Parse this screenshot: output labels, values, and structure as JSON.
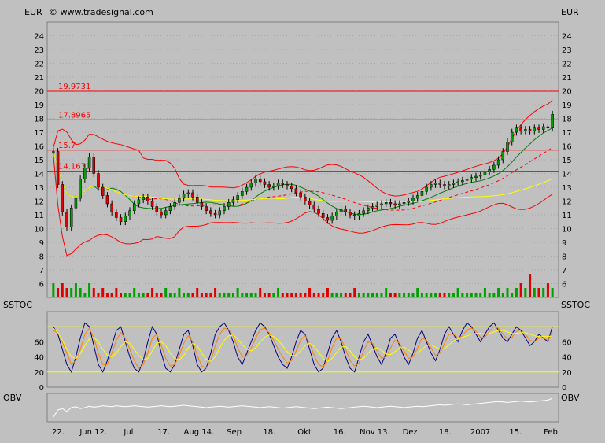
{
  "header": {
    "left_unit": "EUR",
    "right_unit": "EUR",
    "copyright": "© www.tradesignal.com"
  },
  "colors": {
    "background": "#c0c0c0",
    "panel": "#c0c0c0",
    "up_candle": "#00a000",
    "down_candle": "#e00000",
    "bollinger": "#ff0000",
    "ma_fast": "#ff0000",
    "ma_mid": "#008000",
    "ma_slow": "#ffff00",
    "level_line": "#ff0000",
    "stoch_k": "#000080",
    "stoch_d": "#ff8000",
    "stoch_slow": "#ffff00",
    "obv": "#ffffff",
    "grid": "#8c8c8c"
  },
  "chart_data": [
    {
      "type": "candlestick",
      "panel": "price",
      "ylim": [
        5,
        25
      ],
      "y_ticks": [
        6,
        7,
        8,
        9,
        10,
        11,
        12,
        13,
        14,
        15,
        16,
        17,
        18,
        19,
        20,
        21,
        22,
        23,
        24
      ],
      "x_labels": [
        "22.",
        "Jun 12.",
        "Jul",
        "17.",
        "Aug 14.",
        "Sep",
        "18.",
        "Okt",
        "16.",
        "Nov 13.",
        "Dez",
        "18.",
        "2007",
        "15.",
        "Feb"
      ],
      "levels": [
        {
          "label": "19.9731",
          "value": 19.9731
        },
        {
          "label": "17.8965",
          "value": 17.8965
        },
        {
          "label": "15.7",
          "value": 15.7
        },
        {
          "label": "14.1671",
          "value": 14.1671
        }
      ],
      "close": [
        15.6,
        13.2,
        11.2,
        10.1,
        11.5,
        12.2,
        13.6,
        14.4,
        15.2,
        14.0,
        13.0,
        12.4,
        11.8,
        11.2,
        10.8,
        10.5,
        10.9,
        11.3,
        11.8,
        12.1,
        12.3,
        12.0,
        11.6,
        11.2,
        11.0,
        11.3,
        11.6,
        11.9,
        12.2,
        12.5,
        12.6,
        12.3,
        11.9,
        11.6,
        11.3,
        11.1,
        11.0,
        11.3,
        11.6,
        11.9,
        12.1,
        12.4,
        12.7,
        13.0,
        13.3,
        13.6,
        13.4,
        13.2,
        13.0,
        13.1,
        13.3,
        13.2,
        13.1,
        12.9,
        12.6,
        12.3,
        12.0,
        11.7,
        11.4,
        11.1,
        10.8,
        10.6,
        10.9,
        11.2,
        11.4,
        11.2,
        11.0,
        10.9,
        11.1,
        11.3,
        11.5,
        11.6,
        11.7,
        11.8,
        11.9,
        11.8,
        11.7,
        11.8,
        11.9,
        12.0,
        12.2,
        12.4,
        12.7,
        13.0,
        13.2,
        13.3,
        13.2,
        13.1,
        13.2,
        13.3,
        13.4,
        13.5,
        13.6,
        13.7,
        13.8,
        13.9,
        14.1,
        14.3,
        14.6,
        15.0,
        15.6,
        16.3,
        17.0,
        17.3,
        17.1,
        17.2,
        17.1,
        17.3,
        17.2,
        17.4,
        17.3,
        18.3
      ],
      "volume": [
        3,
        2,
        3,
        2,
        2,
        3,
        2,
        1,
        3,
        2,
        1,
        2,
        1,
        1,
        2,
        1,
        1,
        1,
        2,
        1,
        1,
        1,
        2,
        1,
        1,
        2,
        1,
        1,
        2,
        1,
        1,
        1,
        2,
        1,
        1,
        1,
        2,
        1,
        1,
        1,
        1,
        2,
        1,
        1,
        1,
        1,
        2,
        1,
        1,
        1,
        2,
        1,
        1,
        1,
        1,
        1,
        1,
        2,
        1,
        1,
        1,
        2,
        1,
        1,
        1,
        1,
        1,
        2,
        1,
        1,
        1,
        1,
        1,
        1,
        2,
        1,
        1,
        1,
        1,
        1,
        1,
        2,
        1,
        1,
        1,
        1,
        1,
        1,
        1,
        1,
        2,
        1,
        1,
        1,
        1,
        1,
        2,
        1,
        1,
        2,
        1,
        2,
        1,
        2,
        3,
        2,
        5,
        2,
        2,
        2,
        3,
        2
      ]
    },
    {
      "type": "line",
      "panel": "SSTOC",
      "label": "SSTOC",
      "ylim": [
        0,
        100
      ],
      "y_ticks": [
        0,
        20,
        40,
        60
      ],
      "bands": [
        20,
        80
      ],
      "series": [
        {
          "values": [
            80,
            70,
            50,
            30,
            20,
            40,
            65,
            85,
            80,
            55,
            30,
            20,
            35,
            55,
            75,
            80,
            60,
            40,
            25,
            20,
            35,
            60,
            80,
            70,
            45,
            25,
            20,
            30,
            50,
            70,
            75,
            55,
            30,
            20,
            25,
            45,
            70,
            80,
            85,
            75,
            60,
            40,
            30,
            45,
            60,
            75,
            85,
            80,
            70,
            55,
            40,
            30,
            25,
            40,
            60,
            75,
            70,
            50,
            30,
            20,
            25,
            45,
            65,
            75,
            60,
            40,
            25,
            20,
            40,
            60,
            70,
            55,
            40,
            30,
            45,
            65,
            70,
            55,
            40,
            30,
            45,
            65,
            75,
            60,
            45,
            35,
            50,
            70,
            80,
            70,
            60,
            75,
            85,
            80,
            70,
            60,
            70,
            80,
            85,
            75,
            65,
            60,
            70,
            80,
            75,
            65,
            55,
            60,
            70,
            65,
            60,
            80
          ]
        },
        {
          "values": [
            75,
            72,
            60,
            45,
            30,
            35,
            50,
            70,
            78,
            65,
            45,
            30,
            30,
            45,
            62,
            72,
            65,
            50,
            35,
            25,
            30,
            45,
            65,
            70,
            55,
            38,
            28,
            30,
            42,
            58,
            68,
            60,
            42,
            28,
            25,
            35,
            55,
            70,
            78,
            76,
            68,
            52,
            40,
            42,
            52,
            65,
            76,
            78,
            72,
            62,
            50,
            40,
            32,
            35,
            48,
            62,
            68,
            58,
            42,
            30,
            27,
            35,
            52,
            65,
            64,
            50,
            35,
            28,
            32,
            48,
            60,
            58,
            48,
            38,
            40,
            52,
            62,
            58,
            48,
            38,
            40,
            52,
            65,
            62,
            52,
            42,
            45,
            58,
            70,
            70,
            65,
            68,
            76,
            78,
            74,
            66,
            66,
            74,
            80,
            78,
            70,
            64,
            66,
            74,
            76,
            70,
            62,
            60,
            65,
            65,
            62,
            72
          ]
        },
        {
          "values": [
            78,
            72,
            62,
            50,
            40,
            38,
            44,
            55,
            64,
            66,
            60,
            50,
            42,
            40,
            45,
            54,
            60,
            58,
            50,
            42,
            36,
            38,
            48,
            58,
            60,
            55,
            45,
            38,
            36,
            42,
            52,
            58,
            55,
            45,
            37,
            34,
            40,
            52,
            62,
            68,
            69,
            64,
            56,
            50,
            48,
            52,
            60,
            66,
            69,
            67,
            62,
            55,
            47,
            42,
            42,
            48,
            55,
            58,
            54,
            46,
            38,
            34,
            38,
            46,
            53,
            54,
            48,
            40,
            36,
            38,
            45,
            50,
            52,
            49,
            44,
            43,
            47,
            52,
            53,
            49,
            45,
            45,
            50,
            55,
            56,
            53,
            50,
            51,
            56,
            61,
            64,
            66,
            68,
            70,
            71,
            71,
            70,
            71,
            73,
            75,
            75,
            73,
            71,
            71,
            72,
            72,
            70,
            68,
            67,
            67,
            67,
            68
          ]
        }
      ]
    },
    {
      "type": "line",
      "panel": "OBV",
      "label": "OBV",
      "series": [
        {
          "values": [
            40,
            55,
            58,
            52,
            60,
            62,
            58,
            60,
            63,
            61,
            62,
            64,
            63,
            62,
            64,
            63,
            62,
            63,
            64,
            63,
            62,
            61,
            62,
            63,
            64,
            63,
            62,
            63,
            64,
            65,
            64,
            63,
            62,
            61,
            60,
            61,
            62,
            63,
            62,
            61,
            62,
            63,
            64,
            63,
            62,
            61,
            60,
            61,
            62,
            61,
            60,
            59,
            60,
            61,
            62,
            61,
            60,
            59,
            58,
            59,
            60,
            61,
            60,
            59,
            58,
            59,
            60,
            61,
            62,
            63,
            62,
            61,
            60,
            61,
            62,
            63,
            62,
            61,
            60,
            61,
            62,
            63,
            62,
            63,
            64,
            65,
            66,
            65,
            66,
            67,
            68,
            67,
            66,
            67,
            68,
            69,
            70,
            71,
            72,
            73,
            72,
            71,
            72,
            73,
            74,
            73,
            72,
            73,
            74,
            75,
            76,
            80
          ]
        }
      ]
    }
  ]
}
